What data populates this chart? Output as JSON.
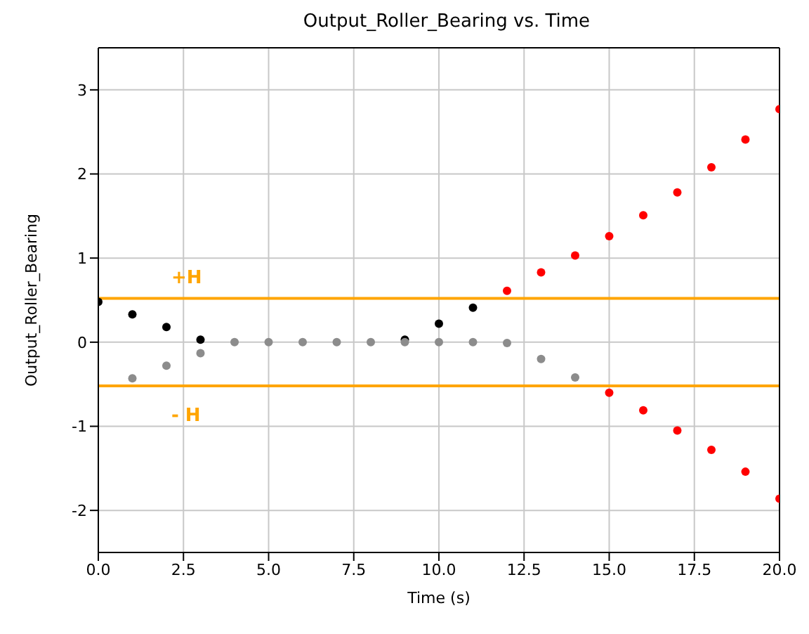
{
  "chart_data": {
    "type": "scatter",
    "title": "Output_Roller_Bearing vs. Time",
    "xlabel": "Time (s)",
    "ylabel": "Output_Roller_Bearing",
    "xlim": [
      0,
      20
    ],
    "ylim": [
      -2.5,
      3.5
    ],
    "xticks": [
      {
        "value": 0,
        "label": "0.0"
      },
      {
        "value": 2.5,
        "label": "2.5"
      },
      {
        "value": 5,
        "label": "5.0"
      },
      {
        "value": 7.5,
        "label": "7.5"
      },
      {
        "value": 10,
        "label": "10.0"
      },
      {
        "value": 12.5,
        "label": "12.5"
      },
      {
        "value": 15,
        "label": "15.0"
      },
      {
        "value": 17.5,
        "label": "17.5"
      },
      {
        "value": 20,
        "label": "20.0"
      }
    ],
    "yticks": [
      -2,
      -1,
      0,
      1,
      2,
      3
    ],
    "grid": true,
    "marker": "circle",
    "series": [
      {
        "color": "#000000",
        "x": [
          0,
          1,
          2,
          3,
          9,
          10,
          11
        ],
        "values": [
          0.48,
          0.33,
          0.18,
          0.03,
          0.03,
          0.22,
          0.41
        ]
      },
      {
        "color": "#8c8c8c",
        "x": [
          1,
          2,
          3,
          4,
          5,
          6,
          7,
          8,
          9,
          10,
          11,
          12,
          13,
          14
        ],
        "values": [
          -0.43,
          -0.28,
          -0.13,
          0,
          0,
          0,
          0,
          0,
          0,
          0,
          0,
          -0.01,
          -0.2,
          -0.42
        ]
      },
      {
        "color": "#ff0000",
        "x": [
          12,
          13,
          14,
          15,
          16,
          17,
          18,
          19,
          20
        ],
        "values": [
          0.61,
          0.83,
          1.03,
          1.26,
          1.51,
          1.78,
          2.08,
          2.41,
          2.77
        ]
      },
      {
        "color": "#ff0000",
        "x": [
          15,
          16,
          17,
          18,
          19,
          20
        ],
        "values": [
          -0.6,
          -0.81,
          -1.05,
          -1.28,
          -1.54,
          -1.86
        ]
      }
    ],
    "ref_lines": [
      {
        "axis": "y",
        "value": 0.52,
        "label": "+H",
        "color": "#ffa500"
      },
      {
        "axis": "y",
        "value": -0.52,
        "label": "- H",
        "color": "#ffa500"
      }
    ]
  }
}
